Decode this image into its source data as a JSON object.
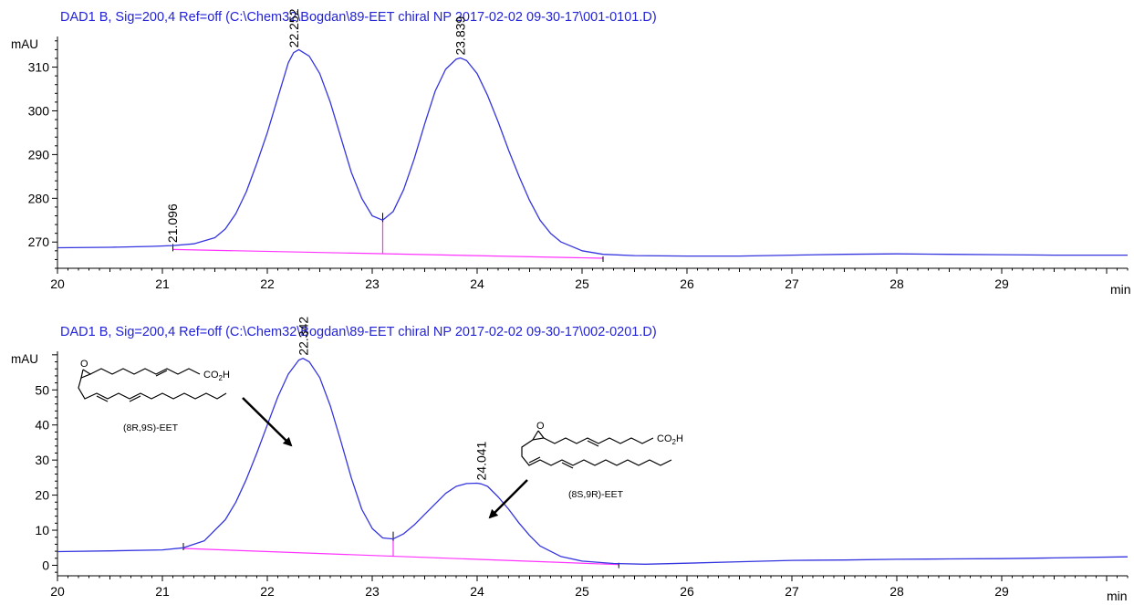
{
  "chart_data": [
    {
      "type": "line",
      "title": "DAD1 B, Sig=200,4 Ref=off (C:\\Chem32\\Bogdan\\89-EET chiral NP 2017-02-02 09-30-17\\001-0101.D)",
      "ylabel": "mAU",
      "xlabel": "min",
      "xlim": [
        20,
        30.2
      ],
      "ylim": [
        264,
        317
      ],
      "x_ticks": [
        20,
        21,
        22,
        23,
        24,
        25,
        26,
        27,
        28,
        29
      ],
      "y_ticks": [
        270,
        280,
        290,
        300,
        310
      ],
      "series": [
        {
          "color": "#3535e0",
          "x": [
            20.0,
            20.5,
            20.9,
            21.1,
            21.3,
            21.5,
            21.6,
            21.7,
            21.8,
            21.9,
            22.0,
            22.1,
            22.2,
            22.25,
            22.3,
            22.4,
            22.5,
            22.6,
            22.7,
            22.8,
            22.9,
            23.0,
            23.1,
            23.2,
            23.3,
            23.4,
            23.5,
            23.6,
            23.7,
            23.8,
            23.84,
            23.9,
            24.0,
            24.1,
            24.2,
            24.3,
            24.4,
            24.5,
            24.6,
            24.7,
            24.8,
            25.0,
            25.2,
            25.5,
            26.0,
            26.5,
            27.0,
            27.5,
            28.0,
            28.5,
            29.0,
            29.5,
            30.2
          ],
          "y": [
            268.7,
            268.8,
            269.0,
            269.2,
            269.6,
            271.0,
            273.0,
            276.5,
            281.5,
            288.0,
            295.0,
            303.0,
            311.0,
            313.3,
            314.0,
            312.5,
            308.5,
            302.0,
            294.0,
            286.0,
            280.0,
            276.0,
            275.0,
            277.0,
            282.0,
            289.0,
            297.0,
            304.5,
            309.5,
            311.8,
            312.1,
            311.5,
            308.5,
            303.5,
            297.5,
            291.0,
            285.0,
            279.5,
            275.0,
            272.0,
            270.0,
            268.0,
            267.2,
            266.9,
            266.8,
            266.8,
            267.0,
            267.2,
            267.3,
            267.2,
            267.1,
            267.0,
            267.0
          ]
        }
      ],
      "baseline": {
        "color": "#ff33ff",
        "x": [
          21.1,
          25.2
        ],
        "y": [
          268.3,
          266.3
        ]
      },
      "peaks": [
        {
          "label": "21.096",
          "x": 21.096,
          "y": 269.2
        },
        {
          "label": "22.252",
          "x": 22.252,
          "y": 313.8
        },
        {
          "label": "23.839",
          "x": 23.839,
          "y": 312.1
        }
      ]
    },
    {
      "type": "line",
      "title": "DAD1 B, Sig=200,4 Ref=off (C:\\Chem32\\Bogdan\\89-EET chiral NP 2017-02-02 09-30-17\\002-0201.D)",
      "ylabel": "mAU",
      "xlabel": "min",
      "xlim": [
        20,
        30.2
      ],
      "ylim": [
        -3,
        61
      ],
      "x_ticks": [
        20,
        21,
        22,
        23,
        24,
        25,
        26,
        27,
        28,
        29
      ],
      "y_ticks": [
        0,
        10,
        20,
        30,
        40,
        50
      ],
      "series": [
        {
          "color": "#3535e0",
          "x": [
            20.0,
            20.5,
            21.0,
            21.2,
            21.4,
            21.6,
            21.7,
            21.8,
            21.9,
            22.0,
            22.1,
            22.2,
            22.3,
            22.34,
            22.4,
            22.5,
            22.6,
            22.7,
            22.8,
            22.9,
            23.0,
            23.1,
            23.2,
            23.3,
            23.4,
            23.5,
            23.6,
            23.7,
            23.8,
            23.9,
            24.0,
            24.04,
            24.1,
            24.2,
            24.3,
            24.4,
            24.5,
            24.6,
            24.8,
            25.0,
            25.3,
            25.6,
            26.0,
            26.5,
            27.0,
            27.5,
            28.0,
            28.5,
            29.0,
            29.5,
            30.2
          ],
          "y": [
            3.9,
            4.1,
            4.4,
            5.0,
            7.0,
            13.0,
            18.0,
            24.5,
            32.0,
            40.0,
            48.0,
            54.5,
            58.5,
            59.0,
            58.0,
            53.5,
            45.5,
            35.5,
            25.0,
            16.0,
            10.5,
            7.8,
            7.5,
            9.0,
            11.5,
            14.5,
            17.5,
            20.5,
            22.5,
            23.3,
            23.4,
            23.2,
            22.5,
            19.5,
            16.0,
            12.0,
            8.5,
            5.5,
            2.5,
            1.2,
            0.5,
            0.3,
            0.6,
            1.0,
            1.4,
            1.5,
            1.7,
            1.8,
            1.9,
            2.1,
            2.4
          ]
        }
      ],
      "baseline": {
        "color": "#ff33ff",
        "x": [
          21.2,
          25.35
        ],
        "y": [
          4.8,
          0.2
        ]
      },
      "peaks": [
        {
          "label": "22.342",
          "x": 22.342,
          "y": 59.0
        },
        {
          "label": "24.041",
          "x": 24.041,
          "y": 23.4
        }
      ]
    }
  ],
  "annotations": {
    "compound_left": "(8R,9S)-EET",
    "compound_right": "(8S,9R)-EET",
    "epoxide_atom": "O",
    "acid_group": "CO",
    "acid_subscript": "2",
    "acid_h": "H"
  }
}
